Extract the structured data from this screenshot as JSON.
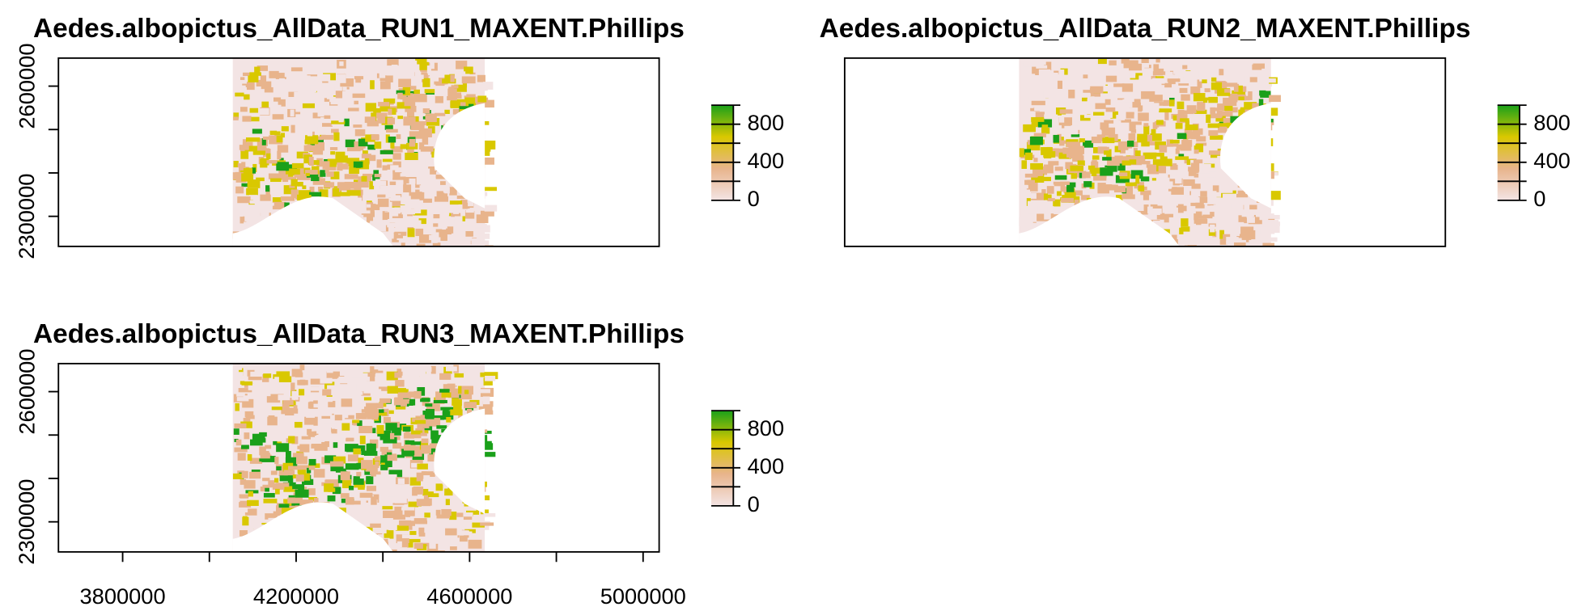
{
  "chart_data": [
    {
      "type": "raster",
      "title": "Aedes.albopictus_AllData_RUN1_MAXENT.Phillips",
      "xlim": [
        3652000,
        5037000
      ],
      "ylim": [
        2230700,
        2664600
      ],
      "raster_xlim": [
        4054000,
        4635000
      ],
      "yticks": [
        2300000,
        {
          "value": 2400000,
          "label": null
        },
        {
          "value": 2500000,
          "label": null
        },
        2600000
      ],
      "colors": [
        "#f3e4e4",
        "#e8b48c",
        "#d9c800",
        "#1aa01a"
      ],
      "colorbar": {
        "lim": [
          0,
          1000
        ],
        "ticks": [
          0,
          {
            "value": 200,
            "label": null
          },
          400,
          {
            "value": 600,
            "label": null
          },
          800,
          {
            "value": 1000,
            "label": null
          }
        ]
      }
    },
    {
      "type": "raster",
      "title": "Aedes.albopictus_AllData_RUN2_MAXENT.Phillips",
      "xlim": [
        3652000,
        5037000
      ],
      "ylim": [
        2230700,
        2664600
      ],
      "raster_xlim": [
        4054000,
        4635000
      ],
      "colors": [
        "#f3e4e4",
        "#e8b48c",
        "#d9c800",
        "#1aa01a"
      ],
      "colorbar": {
        "lim": [
          0,
          1000
        ],
        "ticks": [
          0,
          {
            "value": 200,
            "label": null
          },
          400,
          {
            "value": 600,
            "label": null
          },
          800,
          {
            "value": 1000,
            "label": null
          }
        ]
      }
    },
    {
      "type": "raster",
      "title": "Aedes.albopictus_AllData_RUN3_MAXENT.Phillips",
      "xlim": [
        3652000,
        5037000
      ],
      "ylim": [
        2230700,
        2664600
      ],
      "raster_xlim": [
        4054000,
        4635000
      ],
      "yticks": [
        2300000,
        {
          "value": 2400000,
          "label": null
        },
        {
          "value": 2500000,
          "label": null
        },
        2600000
      ],
      "xticks": [
        3800000,
        {
          "value": 4000000,
          "label": null
        },
        4200000,
        {
          "value": 4400000,
          "label": null
        },
        4600000,
        {
          "value": 4800000,
          "label": null
        },
        5000000
      ],
      "colors": [
        "#f3e4e4",
        "#e8b48c",
        "#d9c800",
        "#1aa01a"
      ],
      "colorbar": {
        "lim": [
          0,
          1000
        ],
        "ticks": [
          0,
          {
            "value": 200,
            "label": null
          },
          400,
          {
            "value": 600,
            "label": null
          },
          800,
          {
            "value": 1000,
            "label": null
          }
        ]
      }
    }
  ]
}
